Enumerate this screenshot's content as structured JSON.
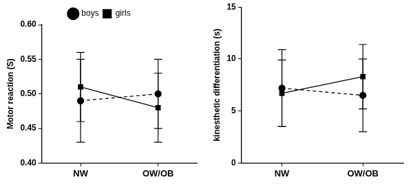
{
  "chart_data": [
    {
      "type": "line",
      "y_label": "Motor reaction (S)",
      "categories": [
        "NW",
        "OW/OB"
      ],
      "series": [
        {
          "name": "boys",
          "color": "#000000",
          "marker": "circle",
          "line_style": "dashed",
          "values": [
            0.49,
            0.5
          ],
          "errors": [
            0.06,
            0.05
          ]
        },
        {
          "name": "girls",
          "color": "#000000",
          "marker": "square",
          "line_style": "solid",
          "values": [
            0.51,
            0.48
          ],
          "errors": [
            0.05,
            0.05
          ]
        }
      ],
      "ylim": [
        0.4,
        0.6
      ],
      "yticks": [
        {
          "value": 0.4,
          "label": "0.40"
        },
        {
          "value": 0.45,
          "label": "0.45"
        },
        {
          "value": 0.5,
          "label": "0.50"
        },
        {
          "value": 0.55,
          "label": "0.55"
        },
        {
          "value": 0.6,
          "label": "0.60"
        }
      ],
      "grid": false,
      "legend": "top"
    },
    {
      "type": "line",
      "y_label": "kinesthetic differentiation (s)",
      "categories": [
        "NW",
        "OW/OB"
      ],
      "series": [
        {
          "name": "boys",
          "color": "#000000",
          "marker": "circle",
          "line_style": "dashed",
          "values": [
            7.2,
            6.5
          ],
          "errors": [
            3.7,
            3.5
          ]
        },
        {
          "name": "girls",
          "color": "#000000",
          "marker": "square",
          "line_style": "solid",
          "values": [
            6.7,
            8.3
          ],
          "errors": [
            3.2,
            3.1
          ]
        }
      ],
      "ylim": [
        0,
        15
      ],
      "yticks": [
        0,
        5,
        10,
        15
      ],
      "grid": false
    }
  ]
}
